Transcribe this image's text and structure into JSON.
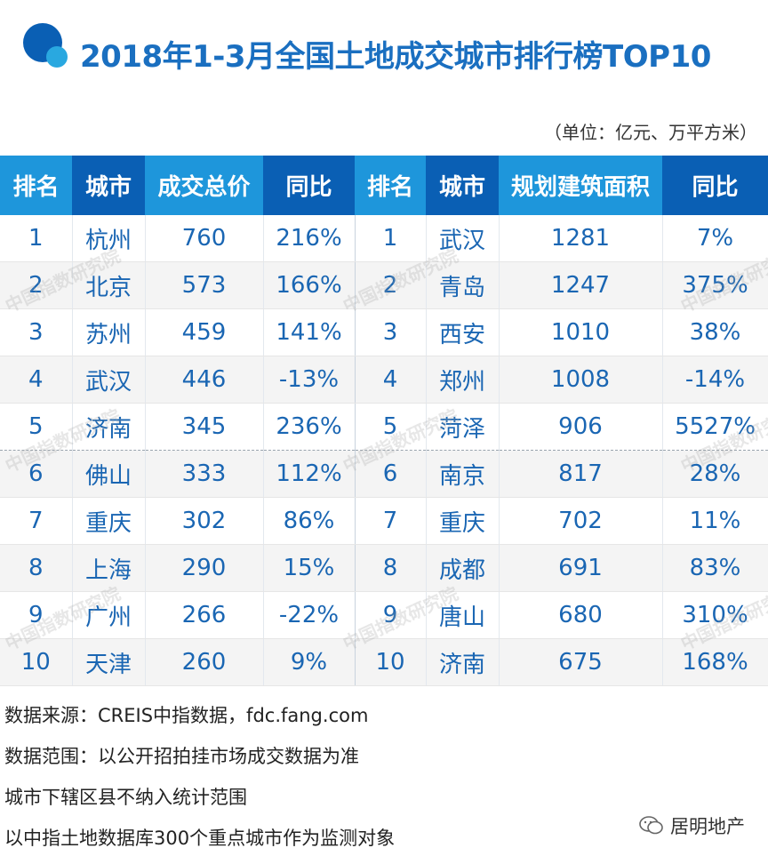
{
  "title": "2018年1-3月全国土地成交城市排行榜TOP10",
  "unit_note": "（单位：亿元、万平方米）",
  "table": {
    "headers": [
      "排名",
      "城市",
      "成交总价",
      "同比",
      "排名",
      "城市",
      "规划建筑面积",
      "同比"
    ],
    "rows": [
      [
        "1",
        "杭州",
        "760",
        "216%",
        "1",
        "武汉",
        "1281",
        "7%"
      ],
      [
        "2",
        "北京",
        "573",
        "166%",
        "2",
        "青岛",
        "1247",
        "375%"
      ],
      [
        "3",
        "苏州",
        "459",
        "141%",
        "3",
        "西安",
        "1010",
        "38%"
      ],
      [
        "4",
        "武汉",
        "446",
        "-13%",
        "4",
        "郑州",
        "1008",
        "-14%"
      ],
      [
        "5",
        "济南",
        "345",
        "236%",
        "5",
        "菏泽",
        "906",
        "5527%"
      ],
      [
        "6",
        "佛山",
        "333",
        "112%",
        "6",
        "南京",
        "817",
        "28%"
      ],
      [
        "7",
        "重庆",
        "302",
        "86%",
        "7",
        "重庆",
        "702",
        "11%"
      ],
      [
        "8",
        "上海",
        "290",
        "15%",
        "8",
        "成都",
        "691",
        "83%"
      ],
      [
        "9",
        "广州",
        "266",
        "-22%",
        "9",
        "唐山",
        "680",
        "310%"
      ],
      [
        "10",
        "天津",
        "260",
        "9%",
        "10",
        "济南",
        "675",
        "168%"
      ]
    ]
  },
  "notes": [
    "数据来源：CREIS中指数据，fdc.fang.com",
    "数据范围：以公开招拍挂市场成交数据为准",
    "城市下辖区县不纳入统计范围",
    "以中指土地数据库300个重点城市作为监测对象"
  ],
  "watermark": "中国指数研究院",
  "wechat_label": "居明地产",
  "colors": {
    "title": "#1a6fc0",
    "header_light": "#1e96db",
    "header_dark": "#0a5fb4",
    "cell_text": "#1a66b3",
    "logo_dark": "#0a5fb4",
    "logo_light": "#29a8e0"
  }
}
